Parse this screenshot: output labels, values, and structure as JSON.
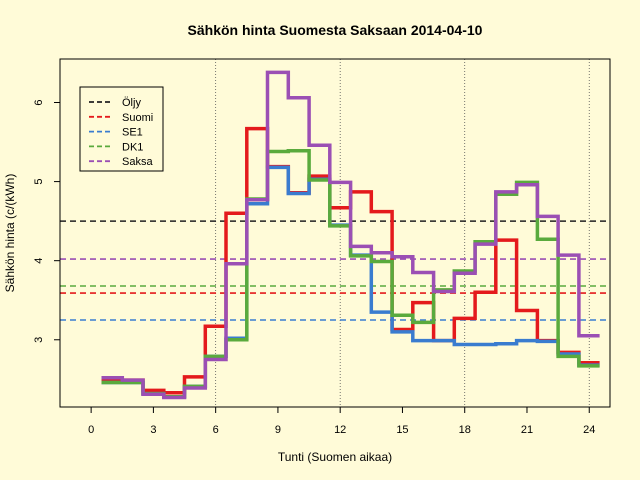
{
  "chart_data": {
    "type": "line",
    "title": "Sähkön hinta Suomesta Saksaan 2014-04-10",
    "xlabel": "Tunti (Suomen aikaa)",
    "ylabel": "Sähkön hinta (c/(kWh)",
    "xlim": [
      -1.5,
      25
    ],
    "ylim": [
      2.15,
      6.55
    ],
    "xticks": [
      0,
      3,
      6,
      9,
      12,
      15,
      18,
      21,
      24
    ],
    "yticks": [
      3,
      4,
      5,
      6
    ],
    "vlines": [
      6,
      12,
      18,
      24
    ],
    "legend_position": "top-left",
    "series": [
      {
        "name": "Öljy",
        "color": "#222222",
        "style": "dashed",
        "kind": "hline",
        "value": 4.5
      },
      {
        "name": "Suomi",
        "color": "#e41a1c",
        "style": "solid",
        "kind": "step",
        "hline": 3.59,
        "x": [
          1,
          2,
          3,
          4,
          5,
          6,
          7,
          8,
          9,
          10,
          11,
          12,
          13,
          14,
          15,
          16,
          17,
          18,
          19,
          20,
          21,
          22,
          23,
          24
        ],
        "values": [
          2.49,
          2.49,
          2.36,
          2.33,
          2.53,
          3.17,
          4.6,
          5.67,
          5.19,
          4.86,
          5.07,
          4.67,
          4.87,
          4.62,
          3.13,
          3.47,
          2.99,
          3.27,
          3.6,
          4.26,
          3.37,
          2.99,
          2.84,
          2.71
        ]
      },
      {
        "name": "SE1",
        "color": "#3a7ccf",
        "style": "solid",
        "kind": "step",
        "hline": 3.25,
        "x": [
          1,
          2,
          3,
          4,
          5,
          6,
          7,
          8,
          9,
          10,
          11,
          12,
          13,
          14,
          15,
          16,
          17,
          18,
          19,
          20,
          21,
          22,
          23,
          24
        ],
        "values": [
          2.46,
          2.46,
          2.32,
          2.28,
          2.41,
          2.79,
          3.02,
          4.72,
          5.18,
          4.85,
          5.03,
          4.45,
          4.07,
          3.35,
          3.1,
          2.99,
          2.99,
          2.94,
          2.94,
          2.95,
          2.99,
          2.98,
          2.82,
          2.68
        ]
      },
      {
        "name": "DK1",
        "color": "#5aaa3d",
        "style": "solid",
        "kind": "step",
        "hline": 3.68,
        "x": [
          1,
          2,
          3,
          4,
          5,
          6,
          7,
          8,
          9,
          10,
          11,
          12,
          13,
          14,
          15,
          16,
          17,
          18,
          19,
          20,
          21,
          22,
          23,
          24
        ],
        "values": [
          2.46,
          2.46,
          2.32,
          2.28,
          2.41,
          2.79,
          3.0,
          4.78,
          5.38,
          5.39,
          5.02,
          4.44,
          4.06,
          3.99,
          3.31,
          3.22,
          3.63,
          3.87,
          4.24,
          4.84,
          4.99,
          4.27,
          2.79,
          2.67
        ]
      },
      {
        "name": "Saksa",
        "color": "#9b4fb4",
        "style": "solid",
        "kind": "step",
        "hline": 4.02,
        "x": [
          1,
          2,
          3,
          4,
          5,
          6,
          7,
          8,
          9,
          10,
          11,
          12,
          13,
          14,
          15,
          16,
          17,
          18,
          19,
          20,
          21,
          22,
          23,
          24
        ],
        "values": [
          2.52,
          2.49,
          2.31,
          2.27,
          2.39,
          2.75,
          3.96,
          4.77,
          6.38,
          6.06,
          5.46,
          4.99,
          4.18,
          4.1,
          4.05,
          3.85,
          3.61,
          3.84,
          4.21,
          4.87,
          4.96,
          4.56,
          4.07,
          3.05
        ]
      }
    ]
  }
}
